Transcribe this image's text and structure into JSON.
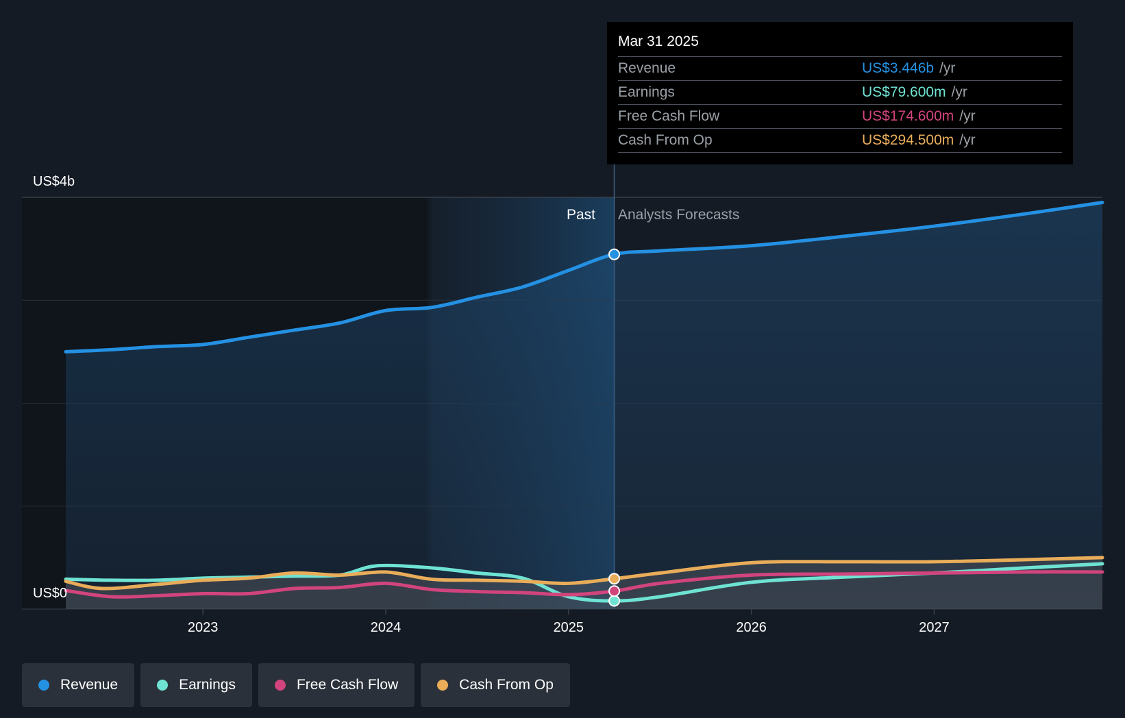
{
  "colors": {
    "revenue": "#2491e3",
    "earnings": "#6fe3d3",
    "fcf": "#d2447d",
    "cfo": "#e9ad5a",
    "background": "#151b24"
  },
  "tooltip": {
    "date": "Mar 31 2025",
    "rows": [
      {
        "name": "Revenue",
        "value": "US$3.446b",
        "unit": "/yr",
        "color": "#2491e3"
      },
      {
        "name": "Earnings",
        "value": "US$79.600m",
        "unit": "/yr",
        "color": "#6fe3d3"
      },
      {
        "name": "Free Cash Flow",
        "value": "US$174.600m",
        "unit": "/yr",
        "color": "#d2447d"
      },
      {
        "name": "Cash From Op",
        "value": "US$294.500m",
        "unit": "/yr",
        "color": "#e9ad5a"
      }
    ]
  },
  "chart_data": {
    "type": "line",
    "ylabel_top": "US$4b",
    "ylabel_bottom": "US$0",
    "ylim": [
      0,
      4
    ],
    "y_unit": "US$ billions",
    "xlim": [
      2022.25,
      2027.92
    ],
    "x_ticks": [
      2023,
      2024,
      2025,
      2026,
      2027
    ],
    "x_tick_labels": [
      "2023",
      "2024",
      "2025",
      "2026",
      "2027"
    ],
    "grid": true,
    "past_label": "Past",
    "forecast_label": "Analysts Forecasts",
    "past_end": 2025.25,
    "highlight_start": 2024.25,
    "series": [
      {
        "name": "Revenue",
        "color": "#2491e3",
        "area": true,
        "points": [
          [
            2022.25,
            2.5
          ],
          [
            2022.5,
            2.52
          ],
          [
            2022.75,
            2.55
          ],
          [
            2023.0,
            2.57
          ],
          [
            2023.25,
            2.64
          ],
          [
            2023.5,
            2.71
          ],
          [
            2023.75,
            2.78
          ],
          [
            2024.0,
            2.9
          ],
          [
            2024.25,
            2.93
          ],
          [
            2024.5,
            3.03
          ],
          [
            2024.75,
            3.13
          ],
          [
            2025.0,
            3.29
          ],
          [
            2025.25,
            3.446
          ],
          [
            2025.5,
            3.48
          ],
          [
            2026.0,
            3.53
          ],
          [
            2026.5,
            3.62
          ],
          [
            2027.0,
            3.72
          ],
          [
            2027.5,
            3.84
          ],
          [
            2027.92,
            3.95
          ]
        ]
      },
      {
        "name": "Earnings",
        "color": "#6fe3d3",
        "points": [
          [
            2022.25,
            0.29
          ],
          [
            2022.5,
            0.28
          ],
          [
            2022.75,
            0.28
          ],
          [
            2023.0,
            0.3
          ],
          [
            2023.25,
            0.31
          ],
          [
            2023.5,
            0.32
          ],
          [
            2023.75,
            0.33
          ],
          [
            2023.95,
            0.42
          ],
          [
            2024.25,
            0.4
          ],
          [
            2024.5,
            0.35
          ],
          [
            2024.75,
            0.3
          ],
          [
            2025.0,
            0.12
          ],
          [
            2025.25,
            0.0796
          ],
          [
            2025.5,
            0.12
          ],
          [
            2026.0,
            0.26
          ],
          [
            2026.5,
            0.31
          ],
          [
            2027.0,
            0.35
          ],
          [
            2027.5,
            0.4
          ],
          [
            2027.92,
            0.44
          ]
        ]
      },
      {
        "name": "Free Cash Flow",
        "color": "#d2447d",
        "points": [
          [
            2022.25,
            0.18
          ],
          [
            2022.5,
            0.12
          ],
          [
            2022.75,
            0.13
          ],
          [
            2023.0,
            0.15
          ],
          [
            2023.25,
            0.15
          ],
          [
            2023.5,
            0.2
          ],
          [
            2023.75,
            0.21
          ],
          [
            2024.0,
            0.25
          ],
          [
            2024.25,
            0.19
          ],
          [
            2024.5,
            0.17
          ],
          [
            2024.75,
            0.16
          ],
          [
            2025.0,
            0.14
          ],
          [
            2025.25,
            0.1746
          ],
          [
            2025.5,
            0.25
          ],
          [
            2026.0,
            0.33
          ],
          [
            2026.5,
            0.34
          ],
          [
            2027.0,
            0.35
          ],
          [
            2027.5,
            0.36
          ],
          [
            2027.92,
            0.36
          ]
        ]
      },
      {
        "name": "Cash From Op",
        "color": "#e9ad5a",
        "points": [
          [
            2022.25,
            0.27
          ],
          [
            2022.45,
            0.2
          ],
          [
            2022.75,
            0.24
          ],
          [
            2023.0,
            0.28
          ],
          [
            2023.25,
            0.3
          ],
          [
            2023.5,
            0.35
          ],
          [
            2023.75,
            0.33
          ],
          [
            2024.0,
            0.36
          ],
          [
            2024.25,
            0.29
          ],
          [
            2024.5,
            0.28
          ],
          [
            2024.75,
            0.27
          ],
          [
            2025.0,
            0.25
          ],
          [
            2025.25,
            0.2945
          ],
          [
            2025.5,
            0.35
          ],
          [
            2026.0,
            0.45
          ],
          [
            2026.5,
            0.46
          ],
          [
            2027.0,
            0.46
          ],
          [
            2027.5,
            0.48
          ],
          [
            2027.92,
            0.5
          ]
        ]
      }
    ]
  },
  "legend": [
    {
      "label": "Revenue",
      "color": "#2491e3"
    },
    {
      "label": "Earnings",
      "color": "#6fe3d3"
    },
    {
      "label": "Free Cash Flow",
      "color": "#d2447d"
    },
    {
      "label": "Cash From Op",
      "color": "#e9ad5a"
    }
  ]
}
